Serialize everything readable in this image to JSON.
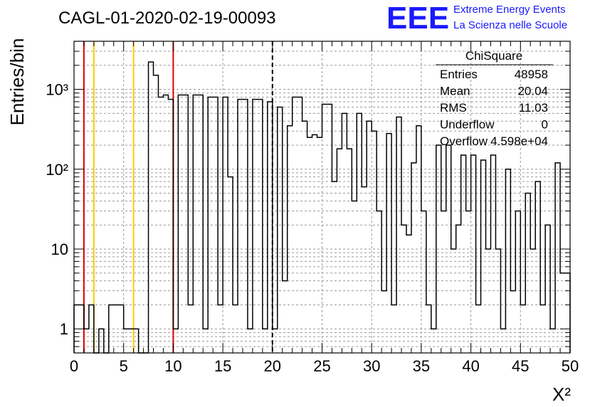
{
  "chart_data": {
    "type": "histogram",
    "title": "CAGL-01-2020-02-19-00093",
    "xlabel": "X²",
    "ylabel": "Entries/bin",
    "xlim": [
      0,
      50
    ],
    "ylim": [
      0.5,
      4000
    ],
    "yscale": "log",
    "grid": true,
    "x_ticks": [
      "0",
      "5",
      "10",
      "15",
      "20",
      "25",
      "30",
      "35",
      "40",
      "45",
      "50"
    ],
    "y_ticks": [
      {
        "value": 1,
        "label": "1"
      },
      {
        "value": 10,
        "label": "10"
      },
      {
        "value": 100,
        "label": "10²"
      },
      {
        "value": 1000,
        "label": "10³"
      }
    ],
    "bin_width": 0.5,
    "bins": [
      {
        "x": 0.0,
        "y": 2
      },
      {
        "x": 0.5,
        "y": 2
      },
      {
        "x": 1.0,
        "y": 1
      },
      {
        "x": 1.5,
        "y": 2
      },
      {
        "x": 2.5,
        "y": 1
      },
      {
        "x": 3.5,
        "y": 2
      },
      {
        "x": 4.0,
        "y": 2
      },
      {
        "x": 4.5,
        "y": 2
      },
      {
        "x": 5.0,
        "y": 1
      },
      {
        "x": 5.5,
        "y": 1
      },
      {
        "x": 6.0,
        "y": 1
      },
      {
        "x": 7.5,
        "y": 2200
      },
      {
        "x": 8.0,
        "y": 1500
      },
      {
        "x": 8.5,
        "y": 800
      },
      {
        "x": 9.0,
        "y": 850
      },
      {
        "x": 9.5,
        "y": 750
      },
      {
        "x": 10.0,
        "y": 1
      },
      {
        "x": 10.5,
        "y": 850
      },
      {
        "x": 11.0,
        "y": 850
      },
      {
        "x": 11.5,
        "y": 2
      },
      {
        "x": 12.0,
        "y": 850
      },
      {
        "x": 12.5,
        "y": 850
      },
      {
        "x": 13.0,
        "y": 1
      },
      {
        "x": 13.5,
        "y": 800
      },
      {
        "x": 14.0,
        "y": 800
      },
      {
        "x": 14.5,
        "y": 2
      },
      {
        "x": 15.0,
        "y": 800
      },
      {
        "x": 15.5,
        "y": 80
      },
      {
        "x": 16.0,
        "y": 2
      },
      {
        "x": 16.5,
        "y": 750
      },
      {
        "x": 17.0,
        "y": 750
      },
      {
        "x": 17.5,
        "y": 1
      },
      {
        "x": 18.0,
        "y": 750
      },
      {
        "x": 18.5,
        "y": 750
      },
      {
        "x": 19.0,
        "y": 1
      },
      {
        "x": 19.5,
        "y": 700
      },
      {
        "x": 20.0,
        "y": 1
      },
      {
        "x": 20.5,
        "y": 600
      },
      {
        "x": 21.0,
        "y": 4
      },
      {
        "x": 21.5,
        "y": 350
      },
      {
        "x": 22.0,
        "y": 800
      },
      {
        "x": 22.5,
        "y": 800
      },
      {
        "x": 23.0,
        "y": 400
      },
      {
        "x": 23.5,
        "y": 250
      },
      {
        "x": 24.0,
        "y": 270
      },
      {
        "x": 24.5,
        "y": 250
      },
      {
        "x": 25.0,
        "y": 650
      },
      {
        "x": 25.5,
        "y": 650
      },
      {
        "x": 26.0,
        "y": 70
      },
      {
        "x": 26.5,
        "y": 180
      },
      {
        "x": 27.0,
        "y": 500
      },
      {
        "x": 27.5,
        "y": 180
      },
      {
        "x": 28.0,
        "y": 40
      },
      {
        "x": 28.5,
        "y": 500
      },
      {
        "x": 29.0,
        "y": 60
      },
      {
        "x": 29.5,
        "y": 400
      },
      {
        "x": 30.0,
        "y": 300
      },
      {
        "x": 30.5,
        "y": 30
      },
      {
        "x": 31.0,
        "y": 3
      },
      {
        "x": 31.5,
        "y": 280
      },
      {
        "x": 32.0,
        "y": 2
      },
      {
        "x": 32.5,
        "y": 450
      },
      {
        "x": 33.0,
        "y": 20
      },
      {
        "x": 33.5,
        "y": 15
      },
      {
        "x": 34.0,
        "y": 120
      },
      {
        "x": 34.5,
        "y": 350
      },
      {
        "x": 35.0,
        "y": 30
      },
      {
        "x": 35.5,
        "y": 2
      },
      {
        "x": 36.0,
        "y": 1
      },
      {
        "x": 36.5,
        "y": 200
      },
      {
        "x": 37.0,
        "y": 30
      },
      {
        "x": 37.5,
        "y": 200
      },
      {
        "x": 38.0,
        "y": 10
      },
      {
        "x": 38.5,
        "y": 20
      },
      {
        "x": 39.0,
        "y": 150
      },
      {
        "x": 39.5,
        "y": 30
      },
      {
        "x": 40.0,
        "y": 150
      },
      {
        "x": 40.5,
        "y": 2
      },
      {
        "x": 41.0,
        "y": 130
      },
      {
        "x": 41.5,
        "y": 10
      },
      {
        "x": 42.0,
        "y": 150
      },
      {
        "x": 42.5,
        "y": 10
      },
      {
        "x": 43.0,
        "y": 1
      },
      {
        "x": 43.5,
        "y": 100
      },
      {
        "x": 44.0,
        "y": 3
      },
      {
        "x": 44.5,
        "y": 30
      },
      {
        "x": 45.0,
        "y": 2
      },
      {
        "x": 45.5,
        "y": 50
      },
      {
        "x": 46.0,
        "y": 10
      },
      {
        "x": 46.5,
        "y": 70
      },
      {
        "x": 47.0,
        "y": 2
      },
      {
        "x": 47.5,
        "y": 20
      },
      {
        "x": 48.0,
        "y": 1
      },
      {
        "x": 48.5,
        "y": 120
      },
      {
        "x": 49.0,
        "y": 5
      },
      {
        "x": 49.5,
        "y": 5
      }
    ],
    "vertical_lines": [
      {
        "x": 1,
        "color": "#e60000",
        "style": "solid"
      },
      {
        "x": 2,
        "color": "#ffcc00",
        "style": "solid"
      },
      {
        "x": 6,
        "color": "#ffcc00",
        "style": "solid"
      },
      {
        "x": 10,
        "color": "#e60000",
        "style": "solid"
      },
      {
        "x": 20,
        "color": "#000000",
        "style": "dashed"
      }
    ]
  },
  "logo": {
    "big": "EEE",
    "line1": "Extreme Energy Events",
    "line2": "La Scienza nelle Scuole",
    "color": "#1a1aff"
  },
  "stats": {
    "title": "ChiSquare",
    "rows": [
      {
        "label": "Entries",
        "value": "48958"
      },
      {
        "label": "Mean",
        "value": "20.04"
      },
      {
        "label": "RMS",
        "value": "11.03"
      },
      {
        "label": "Underflow",
        "value": "0"
      },
      {
        "label": "Overflow",
        "value": "4.598e+04"
      }
    ]
  }
}
